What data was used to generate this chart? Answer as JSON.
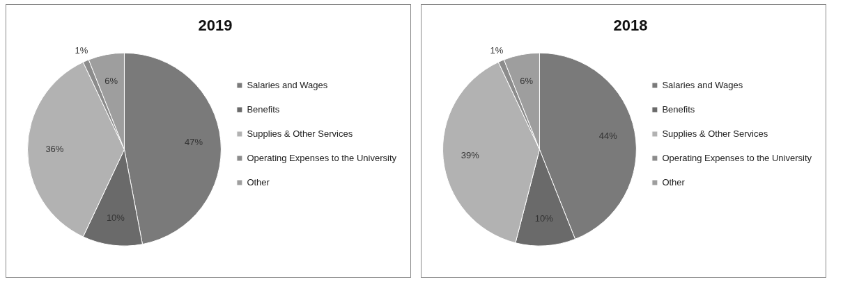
{
  "chart_data": [
    {
      "type": "pie",
      "title": "2019",
      "categories": [
        "Salaries and Wages",
        "Benefits",
        "Supplies & Other Services",
        "Operating Expenses to the University",
        "Other"
      ],
      "values": [
        47,
        10,
        36,
        1,
        6
      ],
      "value_labels": [
        "47%",
        "10%",
        "36%",
        "1%",
        "6%"
      ],
      "colors": [
        "#7a7a7a",
        "#6a6a6a",
        "#b2b2b2",
        "#8c8c8c",
        "#9e9e9e"
      ],
      "legend": "right"
    },
    {
      "type": "pie",
      "title": "2018",
      "categories": [
        "Salaries and Wages",
        "Benefits",
        "Supplies & Other Services",
        "Operating Expenses to the University",
        "Other"
      ],
      "values": [
        44,
        10,
        39,
        1,
        6
      ],
      "value_labels": [
        "44%",
        "10%",
        "39%",
        "1%",
        "6%"
      ],
      "colors": [
        "#7a7a7a",
        "#6a6a6a",
        "#b2b2b2",
        "#8c8c8c",
        "#9e9e9e"
      ],
      "legend": "right"
    }
  ]
}
